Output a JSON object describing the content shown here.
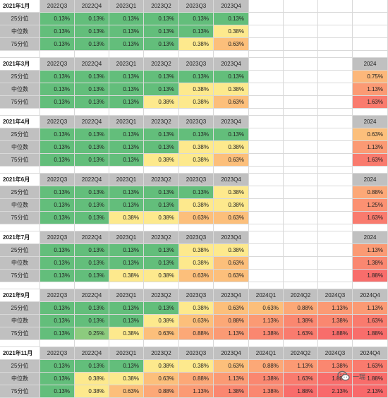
{
  "blocks": [
    {
      "title": "2021年1月",
      "headers": [
        "2022Q3",
        "2022Q4",
        "2023Q1",
        "2023Q2",
        "2023Q3",
        "2023Q4",
        "",
        "",
        "",
        "2024"
      ],
      "header_visible": [
        true,
        true,
        true,
        true,
        true,
        true,
        false,
        false,
        false,
        false
      ],
      "rows": [
        {
          "label": "25分位",
          "values": [
            "0.13%",
            "0.13%",
            "0.13%",
            "0.13%",
            "0.13%",
            "0.13%",
            "",
            "",
            "",
            ""
          ]
        },
        {
          "label": "中位数",
          "values": [
            "0.13%",
            "0.13%",
            "0.13%",
            "0.13%",
            "0.13%",
            "0.38%",
            "",
            "",
            "",
            ""
          ]
        },
        {
          "label": "75分位",
          "values": [
            "0.13%",
            "0.13%",
            "0.13%",
            "0.13%",
            "0.38%",
            "0.63%",
            "",
            "",
            "",
            ""
          ]
        }
      ]
    },
    {
      "title": "2021年3月",
      "headers": [
        "2022Q3",
        "2022Q4",
        "2023Q1",
        "2023Q2",
        "2023Q3",
        "2023Q4",
        "",
        "",
        "",
        "2024"
      ],
      "header_visible": [
        true,
        true,
        true,
        true,
        true,
        true,
        false,
        false,
        false,
        true
      ],
      "rows": [
        {
          "label": "25分位",
          "values": [
            "0.13%",
            "0.13%",
            "0.13%",
            "0.13%",
            "0.13%",
            "0.13%",
            "",
            "",
            "",
            "0.75%"
          ]
        },
        {
          "label": "中位数",
          "values": [
            "0.13%",
            "0.13%",
            "0.13%",
            "0.13%",
            "0.38%",
            "0.38%",
            "",
            "",
            "",
            "1.13%"
          ]
        },
        {
          "label": "75分位",
          "values": [
            "0.13%",
            "0.13%",
            "0.13%",
            "0.38%",
            "0.38%",
            "0.63%",
            "",
            "",
            "",
            "1.63%"
          ]
        }
      ]
    },
    {
      "title": "2021年4月",
      "headers": [
        "2022Q3",
        "2022Q4",
        "2023Q1",
        "2023Q2",
        "2023Q3",
        "2023Q4",
        "",
        "",
        "",
        "2024"
      ],
      "header_visible": [
        true,
        true,
        true,
        true,
        true,
        true,
        false,
        false,
        false,
        true
      ],
      "rows": [
        {
          "label": "25分位",
          "values": [
            "0.13%",
            "0.13%",
            "0.13%",
            "0.13%",
            "0.13%",
            "0.13%",
            "",
            "",
            "",
            "0.63%"
          ]
        },
        {
          "label": "中位数",
          "values": [
            "0.13%",
            "0.13%",
            "0.13%",
            "0.13%",
            "0.38%",
            "0.38%",
            "",
            "",
            "",
            "1.13%"
          ]
        },
        {
          "label": "75分位",
          "values": [
            "0.13%",
            "0.13%",
            "0.13%",
            "0.38%",
            "0.38%",
            "0.63%",
            "",
            "",
            "",
            "1.63%"
          ]
        }
      ]
    },
    {
      "title": "2021年6月",
      "headers": [
        "2022Q3",
        "2022Q4",
        "2023Q1",
        "2023Q2",
        "2023Q3",
        "2023Q4",
        "",
        "",
        "",
        "2024"
      ],
      "header_visible": [
        true,
        true,
        true,
        true,
        true,
        true,
        false,
        false,
        false,
        true
      ],
      "rows": [
        {
          "label": "25分位",
          "values": [
            "0.13%",
            "0.13%",
            "0.13%",
            "0.13%",
            "0.13%",
            "0.38%",
            "",
            "",
            "",
            "0.88%"
          ]
        },
        {
          "label": "中位数",
          "values": [
            "0.13%",
            "0.13%",
            "0.13%",
            "0.13%",
            "0.38%",
            "0.38%",
            "",
            "",
            "",
            "1.25%"
          ]
        },
        {
          "label": "75分位",
          "values": [
            "0.13%",
            "0.13%",
            "0.38%",
            "0.38%",
            "0.63%",
            "0.63%",
            "",
            "",
            "",
            "1.63%"
          ]
        }
      ]
    },
    {
      "title": "2021年7月",
      "headers": [
        "2022Q3",
        "2022Q4",
        "2023Q1",
        "2023Q2",
        "2023Q3",
        "2023Q4",
        "",
        "",
        "",
        "2024"
      ],
      "header_visible": [
        true,
        true,
        true,
        true,
        true,
        true,
        false,
        false,
        false,
        true
      ],
      "rows": [
        {
          "label": "25分位",
          "values": [
            "0.13%",
            "0.13%",
            "0.13%",
            "0.13%",
            "0.38%",
            "0.38%",
            "",
            "",
            "",
            "1.13%"
          ]
        },
        {
          "label": "中位数",
          "values": [
            "0.13%",
            "0.13%",
            "0.13%",
            "0.13%",
            "0.38%",
            "0.63%",
            "",
            "",
            "",
            "1.38%"
          ]
        },
        {
          "label": "75分位",
          "values": [
            "0.13%",
            "0.13%",
            "0.38%",
            "0.38%",
            "0.63%",
            "0.63%",
            "",
            "",
            "",
            "1.88%"
          ]
        }
      ]
    },
    {
      "title": "2021年9月",
      "headers": [
        "2022Q3",
        "2022Q4",
        "2023Q1",
        "2023Q2",
        "2023Q3",
        "2023Q4",
        "2024Q1",
        "2024Q2",
        "2024Q3",
        "2024Q4"
      ],
      "header_visible": [
        true,
        true,
        true,
        true,
        true,
        true,
        true,
        true,
        true,
        true
      ],
      "rows": [
        {
          "label": "25分位",
          "values": [
            "0.13%",
            "0.13%",
            "0.13%",
            "0.13%",
            "0.38%",
            "0.63%",
            "0.63%",
            "0.88%",
            "1.13%",
            "1.13%"
          ]
        },
        {
          "label": "中位数",
          "values": [
            "0.13%",
            "0.13%",
            "0.13%",
            "0.38%",
            "0.63%",
            "0.88%",
            "1.13%",
            "1.38%",
            "1.38%",
            "1.63%"
          ]
        },
        {
          "label": "75分位",
          "values": [
            "0.13%",
            "0.25%",
            "0.38%",
            "0.63%",
            "0.88%",
            "1.13%",
            "1.38%",
            "1.63%",
            "1.88%",
            "1.88%"
          ]
        }
      ]
    },
    {
      "title": "2021年11月",
      "headers": [
        "2022Q3",
        "2022Q4",
        "2023Q1",
        "2023Q2",
        "2023Q3",
        "2023Q4",
        "2024Q1",
        "2024Q2",
        "2024Q3",
        "2024Q4"
      ],
      "header_visible": [
        true,
        true,
        true,
        true,
        true,
        true,
        true,
        true,
        true,
        true
      ],
      "rows": [
        {
          "label": "25分位",
          "values": [
            "0.13%",
            "0.13%",
            "0.13%",
            "0.38%",
            "0.38%",
            "0.63%",
            "0.88%",
            "1.13%",
            "1.38%",
            "1.63%"
          ]
        },
        {
          "label": "中位数",
          "values": [
            "0.13%",
            "0.38%",
            "0.38%",
            "0.63%",
            "0.88%",
            "1.13%",
            "1.38%",
            "1.63%",
            "1.88%",
            "1.88%"
          ]
        },
        {
          "label": "75分位",
          "values": [
            "0.13%",
            "0.38%",
            "0.63%",
            "0.88%",
            "1.13%",
            "1.38%",
            "1.38%",
            "1.88%",
            "2.13%",
            "2.13%"
          ]
        }
      ]
    }
  ],
  "color_scale": {
    "0.13%": "#63be7b",
    "0.25%": "#8ccb7e",
    "0.38%": "#fde98d",
    "0.63%": "#fcbf7b",
    "0.75%": "#fcb77a",
    "0.88%": "#fca877",
    "1.13%": "#fb9a74",
    "1.25%": "#fb9172",
    "1.38%": "#fa8770",
    "1.63%": "#f97b6e",
    "1.88%": "#f86d6b",
    "2.13%": "#f8696b"
  },
  "watermark": {
    "icon": "wechat-icon",
    "text": "一瑞"
  }
}
